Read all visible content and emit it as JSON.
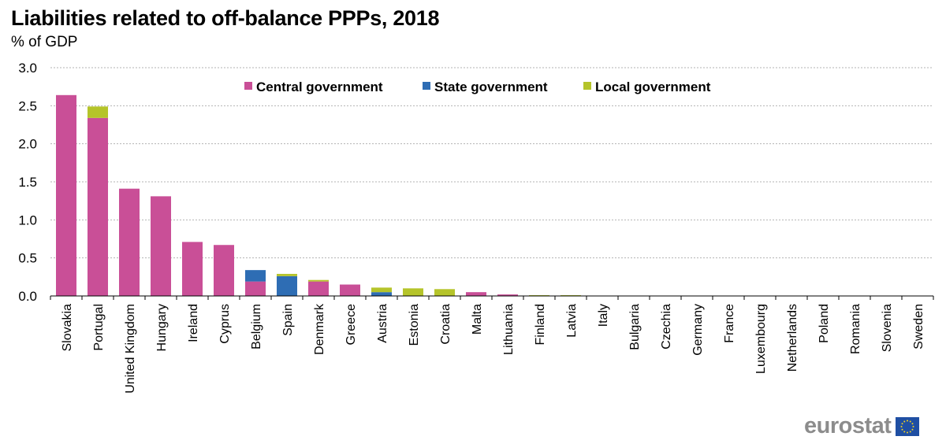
{
  "chart_data": {
    "type": "bar",
    "stacked": true,
    "title": "Liabilities related to off-balance PPPs, 2018",
    "subtitle": "% of GDP",
    "xlabel": "",
    "ylabel": "% of GDP",
    "ylim": [
      0,
      3.0
    ],
    "yticks": [
      "0.0",
      "0.5",
      "1.0",
      "1.5",
      "2.0",
      "2.5",
      "3.0"
    ],
    "grid": true,
    "legend_position": "top",
    "categories": [
      "Slovakia",
      "Portugal",
      "United Kingdom",
      "Hungary",
      "Ireland",
      "Cyprus",
      "Belgium",
      "Spain",
      "Denmark",
      "Greece",
      "Austria",
      "Estonia",
      "Croatia",
      "Malta",
      "Lithuania",
      "Finland",
      "Latvia",
      "Italy",
      "Bulgaria",
      "Czechia",
      "Germany",
      "France",
      "Luxembourg",
      "Netherlands",
      "Poland",
      "Romania",
      "Slovenia",
      "Sweden"
    ],
    "series": [
      {
        "name": "Central government",
        "color": "#c94f97",
        "values": [
          2.64,
          2.34,
          1.41,
          1.31,
          0.71,
          0.67,
          0.19,
          0.0,
          0.19,
          0.15,
          0.0,
          0.0,
          0.0,
          0.05,
          0.02,
          0.0,
          0.0,
          0.0,
          0.0,
          0.0,
          0.0,
          0.0,
          0.0,
          0.0,
          0.0,
          0.0,
          0.0,
          0.0
        ]
      },
      {
        "name": "State government",
        "color": "#2e6db4",
        "values": [
          0.0,
          0.0,
          0.0,
          0.0,
          0.0,
          0.0,
          0.15,
          0.26,
          0.0,
          0.0,
          0.05,
          0.0,
          0.0,
          0.0,
          0.0,
          0.0,
          0.0,
          0.0,
          0.0,
          0.0,
          0.0,
          0.0,
          0.0,
          0.0,
          0.0,
          0.0,
          0.0,
          0.0
        ]
      },
      {
        "name": "Local government",
        "color": "#b5c42a",
        "values": [
          0.0,
          0.15,
          0.0,
          0.0,
          0.0,
          0.0,
          0.0,
          0.03,
          0.02,
          0.0,
          0.06,
          0.1,
          0.09,
          0.0,
          0.0,
          0.01,
          0.01,
          0.0,
          0.0,
          0.0,
          0.0,
          0.0,
          0.0,
          0.0,
          0.0,
          0.0,
          0.0,
          0.0
        ]
      }
    ]
  },
  "branding": {
    "logo_text": "eurostat"
  }
}
